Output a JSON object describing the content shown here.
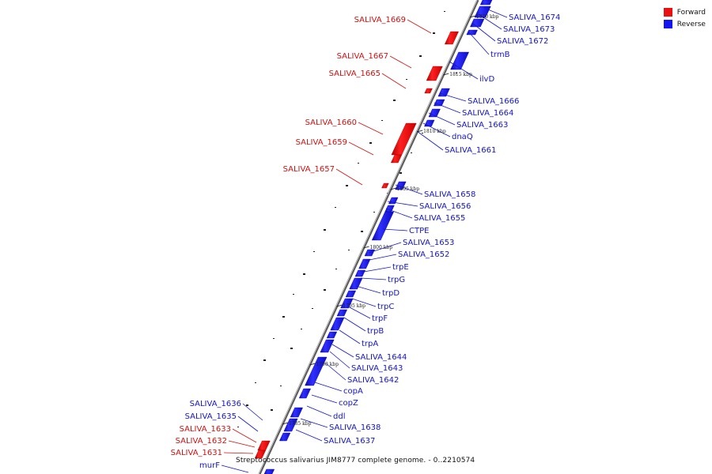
{
  "legend": {
    "forward_label": "Forward",
    "reverse_label": "Reverse",
    "forward_color": "#e81010",
    "reverse_color": "#1414f0"
  },
  "caption": "Streptococcus salivarius JIM8777 complete genome. - 0..2210574",
  "colors": {
    "forward": "#e81010",
    "reverse": "#1414f0",
    "backbone": "#888888",
    "leader": "#3a5ad8"
  },
  "ticks": [
    "1820 kbp",
    "1815 kbp",
    "1810 kbp",
    "1805 kbp",
    "1800 kbp",
    "1795 kbp",
    "1790 kbp",
    "1785 kbp"
  ],
  "genes_forward": [
    "SALIVA_1669",
    "SALIVA_1667",
    "SALIVA_1665",
    "SALIVA_1660",
    "SALIVA_1659",
    "SALIVA_1657",
    "SALIVA_1633",
    "SALIVA_1632",
    "SALIVA_1631"
  ],
  "genes_reverse": [
    "SALIVA_1674",
    "SALIVA_1673",
    "SALIVA_1672",
    "trmB",
    "ilvD",
    "SALIVA_1666",
    "SALIVA_1664",
    "SALIVA_1663",
    "dnaQ",
    "SALIVA_1661",
    "SALIVA_1658",
    "SALIVA_1656",
    "SALIVA_1655",
    "CTPE",
    "SALIVA_1653",
    "SALIVA_1652",
    "trpE",
    "trpG",
    "trpD",
    "trpC",
    "trpF",
    "trpB",
    "trpA",
    "SALIVA_1644",
    "SALIVA_1643",
    "SALIVA_1642",
    "copA",
    "copZ",
    "ddl",
    "SALIVA_1638",
    "SALIVA_1637",
    "SALIVA_1636",
    "SALIVA_1635",
    "murF"
  ]
}
